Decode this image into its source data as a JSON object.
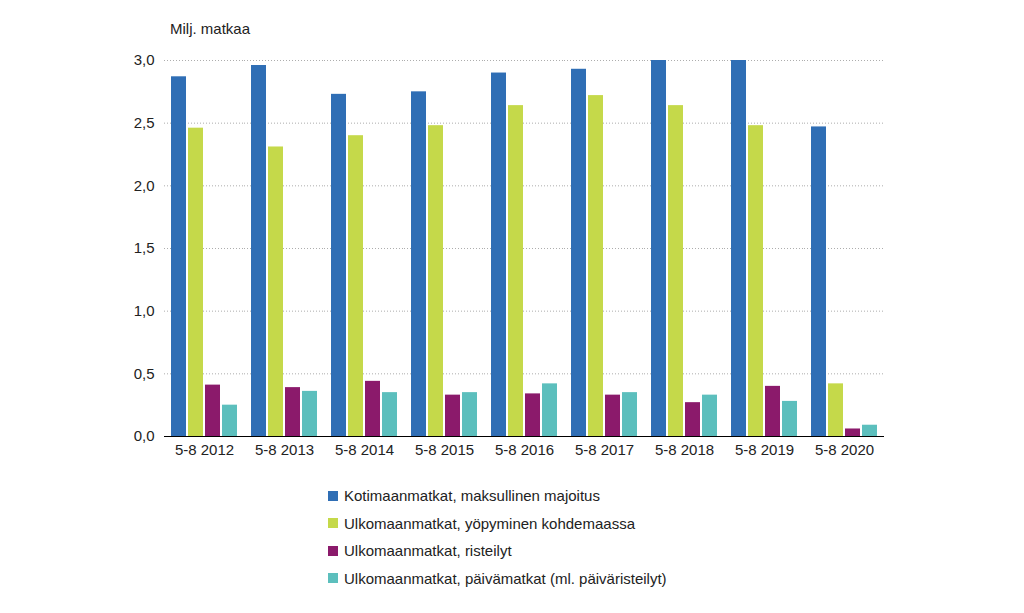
{
  "chart_data": {
    "type": "bar",
    "y_label": "Milj. matkaa",
    "categories": [
      "5-8 2012",
      "5-8 2013",
      "5-8 2014",
      "5-8 2015",
      "5-8 2016",
      "5-8 2017",
      "5-8 2018",
      "5-8 2019",
      "5-8 2020"
    ],
    "series": [
      {
        "name": "Kotimaanmatkat, maksullinen majoitus",
        "color": "#2f6eb5",
        "values": [
          2.87,
          2.96,
          2.73,
          2.75,
          2.9,
          2.93,
          3.0,
          3.0,
          2.47
        ]
      },
      {
        "name": "Ulkomaanmatkat, yöpyminen kohdemaassa",
        "color": "#c5d94a",
        "values": [
          2.46,
          2.31,
          2.4,
          2.48,
          2.64,
          2.72,
          2.64,
          2.48,
          0.42
        ]
      },
      {
        "name": "Ulkomaanmatkat, risteilyt",
        "color": "#8b1a6b",
        "values": [
          0.41,
          0.39,
          0.44,
          0.33,
          0.34,
          0.33,
          0.27,
          0.4,
          0.06
        ]
      },
      {
        "name": "Ulkomaanmatkat, päivämatkat (ml. päiväristeilyt)",
        "color": "#5cbfbd",
        "values": [
          0.25,
          0.36,
          0.35,
          0.35,
          0.42,
          0.35,
          0.33,
          0.28,
          0.09
        ]
      }
    ],
    "ylim": [
      0,
      3
    ],
    "yticks": [
      {
        "value": 0,
        "label": "0,0"
      },
      {
        "value": 0.5,
        "label": "0,5"
      },
      {
        "value": 1,
        "label": "1,0"
      },
      {
        "value": 1.5,
        "label": "1,5"
      },
      {
        "value": 2,
        "label": "2,0"
      },
      {
        "value": 2.5,
        "label": "2,5"
      },
      {
        "value": 3,
        "label": "3,0"
      }
    ],
    "grid": true,
    "legend": "bottom"
  }
}
